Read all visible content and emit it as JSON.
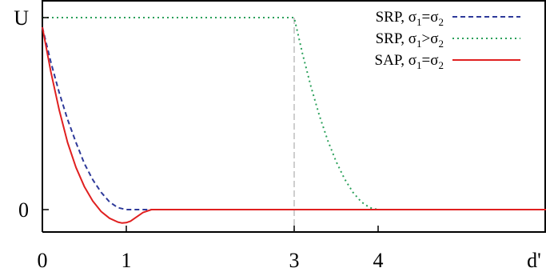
{
  "chart_data": {
    "type": "line",
    "ylabel": "U",
    "xlabel": "d'",
    "xlim": [
      0,
      6
    ],
    "ylim": [
      -0.12,
      1
    ],
    "x_ticks": [
      {
        "value": 0,
        "label": "0"
      },
      {
        "value": 1,
        "label": "1"
      },
      {
        "value": 3,
        "label": "3"
      },
      {
        "value": 4,
        "label": "4"
      }
    ],
    "y_ticks": [
      {
        "value": 0,
        "label": "0"
      },
      {
        "value": 1,
        "label": "U"
      }
    ],
    "vline": {
      "x": 3,
      "color": "#bdbdbd",
      "style": "dashed"
    },
    "grid": false,
    "legend_position": "top-right",
    "series": [
      {
        "name": "SRP, σ1=σ2",
        "name_parts": [
          "SRP, σ",
          "1",
          "=σ",
          "2"
        ],
        "color": "#2e3a9a",
        "style": "dashed",
        "x": [
          0,
          0.1,
          0.2,
          0.3,
          0.4,
          0.5,
          0.6,
          0.7,
          0.8,
          0.9,
          1.0,
          1.1,
          2,
          3,
          4,
          5,
          6
        ],
        "y": [
          0.95,
          0.77,
          0.61,
          0.47,
          0.35,
          0.24,
          0.156,
          0.09,
          0.04,
          0.01,
          0,
          0,
          0,
          0,
          0,
          0,
          0
        ]
      },
      {
        "name": "SRP, σ1>σ2",
        "name_parts": [
          "SRP, σ",
          "1",
          ">σ",
          "2"
        ],
        "color": "#2aa05a",
        "style": "dotted",
        "x": [
          0,
          1,
          2,
          3,
          3.1,
          3.2,
          3.3,
          3.4,
          3.5,
          3.6,
          3.7,
          3.8,
          3.9,
          4.0,
          5,
          6
        ],
        "y": [
          1,
          1,
          1,
          1,
          0.81,
          0.64,
          0.49,
          0.36,
          0.25,
          0.16,
          0.09,
          0.04,
          0.01,
          0,
          0,
          0
        ]
      },
      {
        "name": "SAP, σ1=σ2",
        "name_parts": [
          "SAP, σ",
          "1",
          "=σ",
          "2"
        ],
        "color": "#e02020",
        "style": "solid",
        "x": [
          0,
          0.1,
          0.2,
          0.3,
          0.4,
          0.5,
          0.6,
          0.7,
          0.8,
          0.9,
          0.95,
          1.0,
          1.05,
          1.1,
          1.2,
          1.3,
          1.4,
          2,
          3,
          4,
          5,
          6
        ],
        "y": [
          0.95,
          0.72,
          0.52,
          0.35,
          0.22,
          0.12,
          0.045,
          -0.01,
          -0.045,
          -0.065,
          -0.07,
          -0.068,
          -0.06,
          -0.045,
          -0.015,
          0,
          0,
          0,
          0,
          0,
          0,
          0
        ]
      }
    ]
  }
}
